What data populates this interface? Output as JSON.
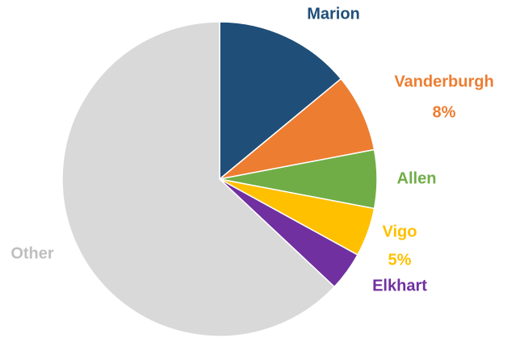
{
  "chart_data": {
    "type": "pie",
    "categories": [
      "Marion",
      "Vanderburgh",
      "Allen",
      "Vigo",
      "Elkhart",
      "Other"
    ],
    "values": [
      14,
      8,
      6,
      5,
      4,
      63
    ],
    "value_labels": [
      null,
      "8%",
      null,
      "5%",
      null,
      null
    ],
    "colors": [
      "#1f4e79",
      "#ed7d31",
      "#70ad47",
      "#ffc000",
      "#7030a0",
      "#d9d9d9"
    ]
  }
}
